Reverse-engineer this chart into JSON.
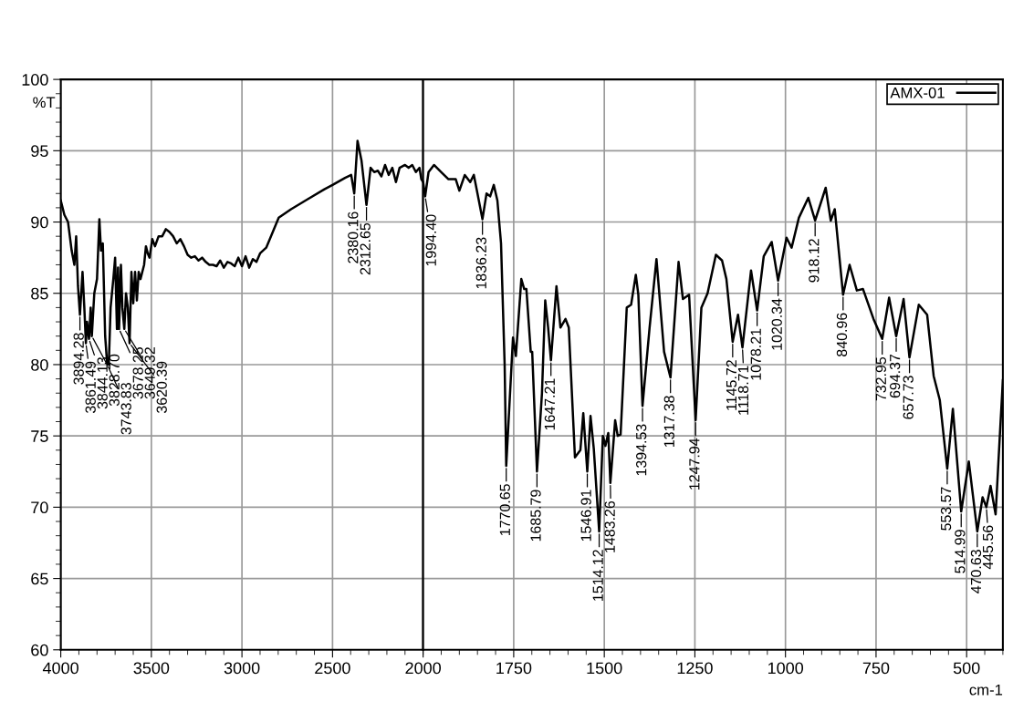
{
  "chart_data": [
    {
      "type": "line",
      "ylabel": "%T",
      "xlim": [
        4000,
        2000
      ],
      "ylim": [
        60,
        100
      ],
      "xticks": [
        4000,
        3500,
        3000,
        2500,
        2000
      ],
      "yticks": [
        60,
        65,
        70,
        75,
        80,
        85,
        90,
        95,
        100
      ],
      "grid": true,
      "series": [
        {
          "color": "#000000",
          "x": [
            4000,
            3980,
            3960,
            3940,
            3925,
            3915,
            3905,
            3894.28,
            3880,
            3870,
            3861.49,
            3855,
            3844.13,
            3835,
            3828.7,
            3815,
            3800,
            3787,
            3778,
            3768,
            3755,
            3743.83,
            3735,
            3725,
            3710,
            3700,
            3690,
            3684,
            3678.25,
            3668,
            3660,
            3649.32,
            3640,
            3630,
            3620.39,
            3610,
            3600,
            3590,
            3580,
            3570,
            3560,
            3550,
            3540,
            3530,
            3520,
            3510,
            3495,
            3480,
            3460,
            3440,
            3420,
            3400,
            3380,
            3360,
            3340,
            3320,
            3300,
            3280,
            3260,
            3240,
            3220,
            3200,
            3180,
            3160,
            3140,
            3120,
            3100,
            3080,
            3060,
            3040,
            3020,
            3000,
            2980,
            2960,
            2940,
            2920,
            2900,
            2866,
            2797,
            2729,
            2637,
            2545,
            2500,
            2431,
            2397,
            2380.16,
            2362,
            2340,
            2312.65,
            2290,
            2270,
            2250,
            2230,
            2210,
            2190,
            2170,
            2150,
            2130,
            2100,
            2080,
            2060,
            2040,
            2020,
            2010,
            2000
          ],
          "values": [
            91.5,
            90.5,
            90,
            88,
            87,
            89,
            85.5,
            83.5,
            86.5,
            84,
            81.5,
            83,
            81.8,
            84,
            82,
            85,
            86,
            90.2,
            88,
            88.5,
            82,
            80,
            80,
            84,
            86,
            87.5,
            82.5,
            86.8,
            82.5,
            87,
            84,
            82.5,
            85,
            84,
            81.5,
            86.5,
            84.3,
            86.5,
            84.5,
            86.5,
            86,
            86.5,
            87,
            88.3,
            87.8,
            87.5,
            88.8,
            88.3,
            89,
            89,
            89.5,
            89.3,
            89,
            88.5,
            88.8,
            88.3,
            87.7,
            87.5,
            87.6,
            87.3,
            87.5,
            87.2,
            87,
            87,
            86.9,
            87.3,
            86.8,
            87.2,
            87.1,
            86.9,
            87.5,
            86.9,
            87.6,
            86.8,
            87.4,
            87.2,
            87.8,
            88.2,
            90.3,
            90.9,
            91.6,
            92.3,
            92.6,
            93.1,
            93.3,
            92,
            95.7,
            94.3,
            91.2,
            93.8,
            93.5,
            93.6,
            93.2,
            94,
            93.3,
            93.8,
            92.8,
            93.8,
            94,
            93.8,
            94,
            93.5,
            93.8,
            93,
            92.8
          ]
        }
      ],
      "annotations": [
        {
          "text": "3894.28",
          "x": 3894.28,
          "y": 83.5
        },
        {
          "text": "3861.49",
          "x": 3861.49,
          "y": 81.5
        },
        {
          "text": "3844.13",
          "x": 3844.13,
          "y": 81.8
        },
        {
          "text": "3828.70",
          "x": 3828.7,
          "y": 82
        },
        {
          "text": "3743.83",
          "x": 3743.83,
          "y": 80
        },
        {
          "text": "3678.25",
          "x": 3678.25,
          "y": 82.5
        },
        {
          "text": "3649.32",
          "x": 3649.32,
          "y": 82.5
        },
        {
          "text": "3620.39",
          "x": 3620.39,
          "y": 81.5
        },
        {
          "text": "2380.16",
          "x": 2380.16,
          "y": 92
        },
        {
          "text": "2312.65",
          "x": 2312.65,
          "y": 91.2
        }
      ]
    },
    {
      "type": "line",
      "xlabel": "cm-1",
      "xlim": [
        2000,
        400
      ],
      "ylim": [
        60,
        100
      ],
      "xticks": [
        1750,
        1500,
        1250,
        1000,
        750,
        500
      ],
      "yticks": [
        60,
        65,
        70,
        75,
        80,
        85,
        90,
        95,
        100
      ],
      "tick_labels": "x",
      "grid": true,
      "legend": "top right",
      "series": [
        {
          "name": "AMX-01",
          "color": "#000000",
          "x": [
            2000,
            1994.4,
            1985,
            1970,
            1950,
            1930,
            1910,
            1900,
            1885,
            1870,
            1860,
            1850,
            1836.23,
            1825,
            1815,
            1805,
            1795,
            1785,
            1775,
            1770.65,
            1752,
            1744,
            1729,
            1721,
            1715,
            1703,
            1699,
            1685.79,
            1672,
            1663,
            1655,
            1647.21,
            1632,
            1621,
            1607,
            1598,
            1581,
            1566,
            1558,
            1546.91,
            1538,
            1529,
            1514.12,
            1504,
            1497,
            1489,
            1483.26,
            1470,
            1463,
            1455,
            1438,
            1426,
            1413,
            1406,
            1394.53,
            1375,
            1356,
            1335,
            1317.38,
            1295,
            1283,
            1266,
            1247.94,
            1232,
            1215,
            1192,
            1175,
            1163,
            1145.72,
            1131,
            1118.71,
            1095,
            1078.21,
            1060,
            1038,
            1020.34,
            997,
            983,
            963,
            937,
            918.12,
            889,
            875,
            864,
            840.96,
            823,
            803,
            786,
            757,
            732.95,
            714,
            694.37,
            674,
            657.73,
            632,
            609,
            591,
            574,
            553.57,
            538,
            514.99,
            494,
            470.63,
            456,
            445.56,
            434,
            420,
            408,
            400
          ],
          "values": [
            92.8,
            91.8,
            93.5,
            94,
            93.5,
            93,
            93,
            92.2,
            93.3,
            92.8,
            93.3,
            92,
            90.2,
            92,
            91.8,
            92.6,
            91.5,
            88.5,
            80,
            72.9,
            81.9,
            80.6,
            86,
            85.3,
            85.3,
            80.9,
            80.9,
            72.5,
            78,
            84.5,
            82.6,
            80.3,
            85.5,
            82.6,
            83.2,
            82.6,
            73.5,
            74,
            76.6,
            72.5,
            76.4,
            74.1,
            68.3,
            75,
            74.3,
            75.2,
            71.7,
            76.1,
            75,
            75.1,
            84,
            84.2,
            86.3,
            84.9,
            77.1,
            82.6,
            87.4,
            80.9,
            79.1,
            87.2,
            84.6,
            84.9,
            76.1,
            84,
            85,
            87.7,
            87.3,
            86,
            81.6,
            83.5,
            81.2,
            86.6,
            83.8,
            87.6,
            88.6,
            85.9,
            88.9,
            88.2,
            90.3,
            91.7,
            90.1,
            92.4,
            90.1,
            90.9,
            84.9,
            87,
            85.2,
            85.3,
            83.2,
            81.8,
            84.7,
            82,
            84.6,
            80.5,
            84.2,
            83.5,
            79.2,
            77.5,
            72.7,
            76.9,
            69.7,
            73.2,
            68.3,
            70.7,
            70,
            71.5,
            69.5,
            75.2,
            78.9
          ]
        }
      ],
      "annotations": [
        {
          "text": "1994.40",
          "x": 1994.4,
          "y": 91.8
        },
        {
          "text": "1836.23",
          "x": 1836.23,
          "y": 90.2
        },
        {
          "text": "1770.65",
          "x": 1770.65,
          "y": 72.9
        },
        {
          "text": "1685.79",
          "x": 1685.79,
          "y": 72.5
        },
        {
          "text": "1647.21",
          "x": 1647.21,
          "y": 80.3
        },
        {
          "text": "1546.91",
          "x": 1546.91,
          "y": 72.5
        },
        {
          "text": "1514.12",
          "x": 1514.12,
          "y": 68.3
        },
        {
          "text": "1483.26",
          "x": 1483.26,
          "y": 71.7
        },
        {
          "text": "1394.53",
          "x": 1394.53,
          "y": 77.1
        },
        {
          "text": "1317.38",
          "x": 1317.38,
          "y": 79.1
        },
        {
          "text": "1247.94",
          "x": 1247.94,
          "y": 76.1
        },
        {
          "text": "1145.72",
          "x": 1145.72,
          "y": 81.6
        },
        {
          "text": "1118.71",
          "x": 1118.71,
          "y": 81.2
        },
        {
          "text": "1078.21",
          "x": 1078.21,
          "y": 83.8
        },
        {
          "text": "1020.34",
          "x": 1020.34,
          "y": 85.9
        },
        {
          "text": "918.12",
          "x": 918.12,
          "y": 90.1
        },
        {
          "text": "840.96",
          "x": 840.96,
          "y": 84.9
        },
        {
          "text": "732.95",
          "x": 732.95,
          "y": 81.8
        },
        {
          "text": "694.37",
          "x": 694.37,
          "y": 82
        },
        {
          "text": "657.73",
          "x": 657.73,
          "y": 80.5
        },
        {
          "text": "553.57",
          "x": 553.57,
          "y": 72.7
        },
        {
          "text": "514.99",
          "x": 514.99,
          "y": 69.7
        },
        {
          "text": "470.63",
          "x": 470.63,
          "y": 68.3
        },
        {
          "text": "445.56",
          "x": 445.56,
          "y": 70
        }
      ]
    }
  ]
}
